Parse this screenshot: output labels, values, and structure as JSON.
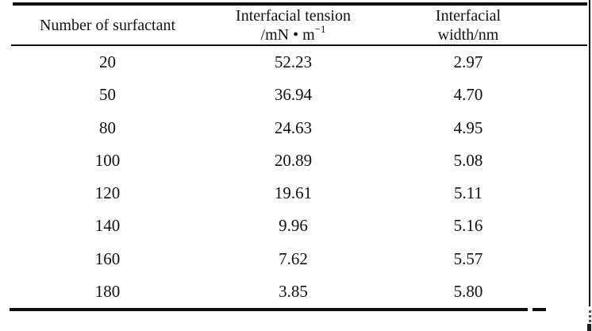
{
  "header": {
    "col1": "Number of surfactant",
    "col2_line1": "Interfacial tension",
    "col2_unit_prefix": "/mN • m",
    "col2_unit_sup": "−1",
    "col3_line1": "Interfacial",
    "col3_line2": "width/nm"
  },
  "rows": [
    [
      "20",
      "52.23",
      "2.97"
    ],
    [
      "50",
      "36.94",
      "4.70"
    ],
    [
      "80",
      "24.63",
      "4.95"
    ],
    [
      "100",
      "20.89",
      "5.08"
    ],
    [
      "120",
      "19.61",
      "5.11"
    ],
    [
      "140",
      "9.96",
      "5.16"
    ],
    [
      "160",
      "7.62",
      "5.57"
    ],
    [
      "180",
      "3.85",
      "5.80"
    ]
  ],
  "chart_data": {
    "type": "table",
    "columns": [
      "Number of surfactant",
      "Interfacial tension /mN • m⁻¹",
      "Interfacial width/nm"
    ],
    "rows": [
      [
        20,
        52.23,
        2.97
      ],
      [
        50,
        36.94,
        4.7
      ],
      [
        80,
        24.63,
        4.95
      ],
      [
        100,
        20.89,
        5.08
      ],
      [
        120,
        19.61,
        5.11
      ],
      [
        140,
        9.96,
        5.16
      ],
      [
        160,
        7.62,
        5.57
      ],
      [
        180,
        3.85,
        5.8
      ]
    ]
  },
  "colors": {
    "text": "#111111",
    "rule": "#101010",
    "background": "#ffffff"
  }
}
